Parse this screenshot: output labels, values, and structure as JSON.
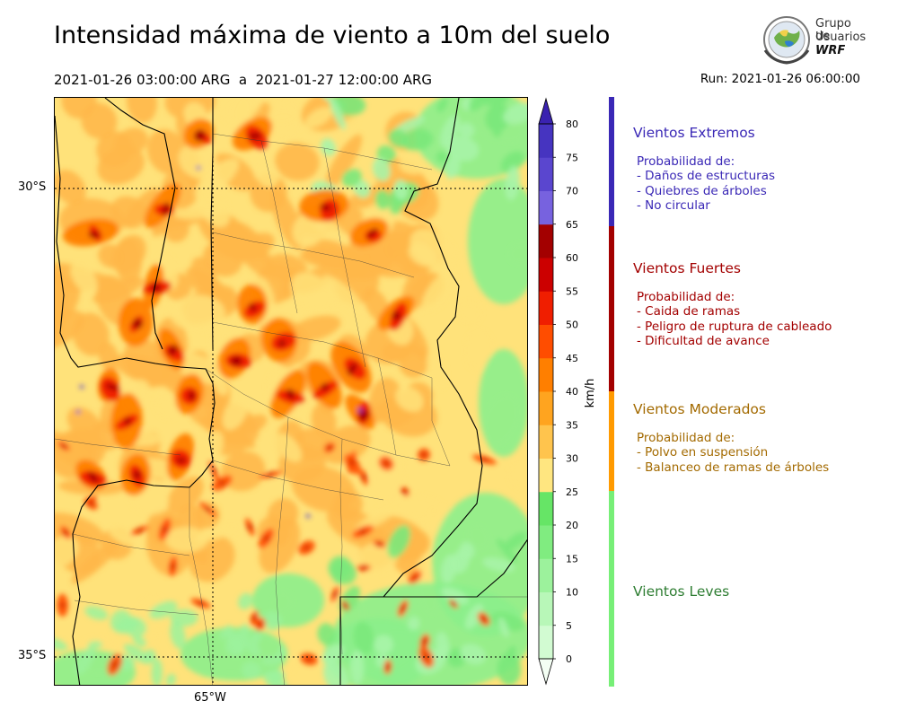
{
  "title": "Intensidad máxima de viento a 10m del suelo",
  "period": "2021-01-26 03:00:00 ARG  a  2021-01-27 12:00:00 ARG",
  "run": "Run: 2021-01-26 06:00:00",
  "logo": {
    "line1": "Grupo de",
    "line2": "Usuarios",
    "line3": "WRF"
  },
  "map": {
    "lat_labels": [
      "30°S",
      "35°S"
    ],
    "lon_labels": [
      "65°W"
    ]
  },
  "colorbar": {
    "unit": "km/h",
    "ticks": [
      "0",
      "5",
      "10",
      "15",
      "20",
      "25",
      "30",
      "35",
      "40",
      "45",
      "50",
      "55",
      "60",
      "65",
      "70",
      "75",
      "80"
    ],
    "colors": [
      "#e8fde8",
      "#d2fbd2",
      "#b8f7b8",
      "#9cf29c",
      "#80ec80",
      "#66e566",
      "#ffe680",
      "#ffc44d",
      "#ffa41f",
      "#ff7f00",
      "#ff4d00",
      "#f01e00",
      "#cc0000",
      "#a30000",
      "#7762df",
      "#5a46cf",
      "#4634c0",
      "#3a25b3"
    ],
    "under_color": "#f4fff4",
    "over_color": "#3a22b0"
  },
  "categories": [
    {
      "name": "Vientos Extremos",
      "color": "#3a28b6",
      "text_color": "#3a28b6",
      "desc": [
        "Probabilidad de:",
        "- Daños de estructuras",
        "- Quiebres de árboles",
        "- No circular"
      ]
    },
    {
      "name": "Vientos Fuertes",
      "color": "#a30000",
      "text_color": "#a30000",
      "desc": [
        "Probabilidad de:",
        "- Caida de ramas",
        "- Peligro de ruptura de cableado",
        "- Dificultad de avance"
      ]
    },
    {
      "name": "Vientos Moderados",
      "color": "#ff9a00",
      "text_color": "#a36a00",
      "desc": [
        "Probabilidad de:",
        "- Polvo en suspensión",
        "- Balanceo de ramas de árboles"
      ]
    },
    {
      "name": "Vientos Leves",
      "color": "#77ef77",
      "text_color": "#2e7d32",
      "desc": []
    }
  ]
}
